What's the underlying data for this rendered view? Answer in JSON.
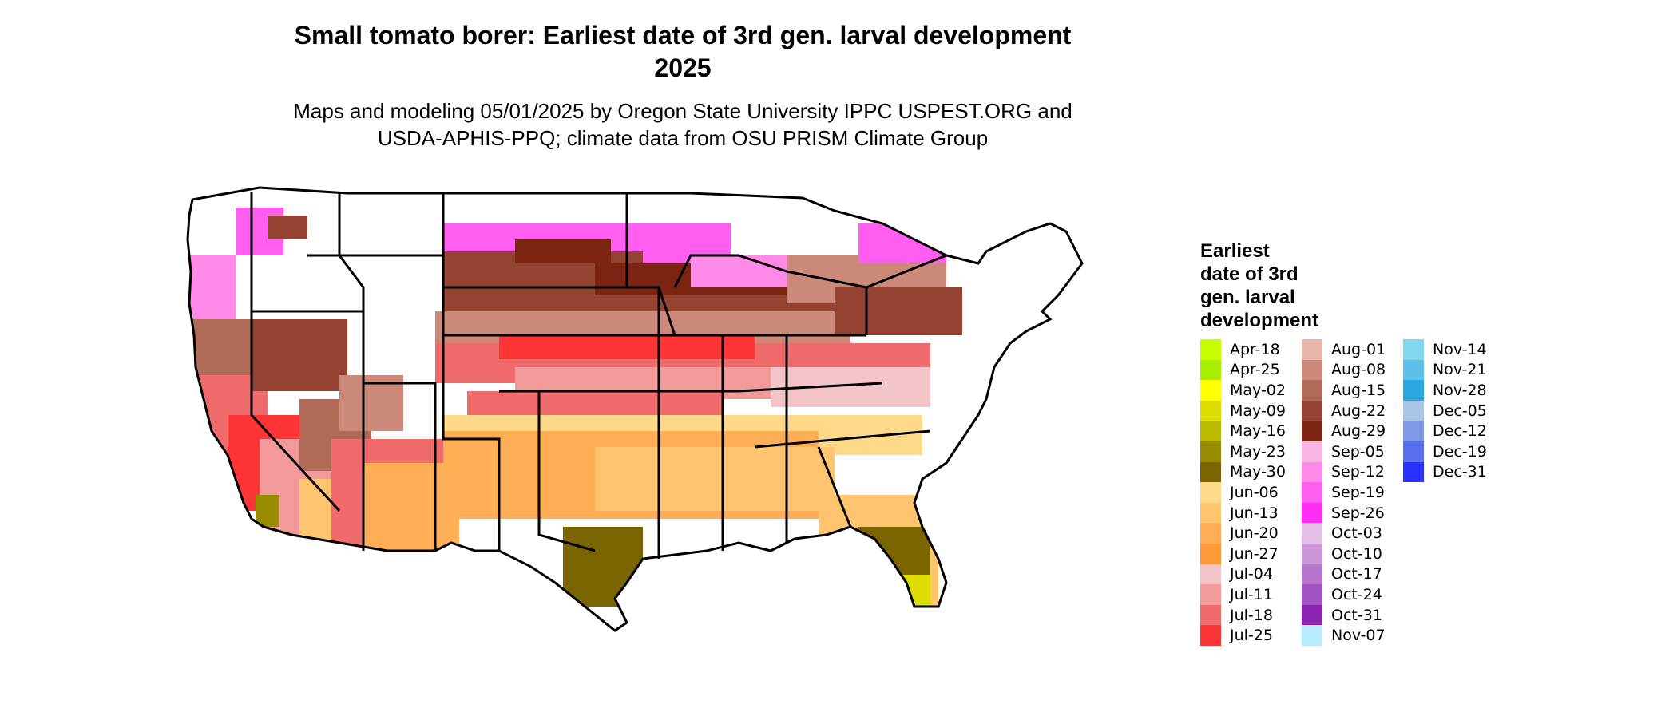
{
  "title_line1": "Small tomato borer: Earliest date of 3rd gen. larval development",
  "title_line2": "2025",
  "subtitle_line1": "Maps and modeling 05/01/2025 by Oregon State University IPPC USPEST.ORG and",
  "subtitle_line2": "USDA-APHIS-PPQ; climate data from OSU PRISM Climate Group",
  "legend": {
    "title_line1": "Earliest",
    "title_line2": "date of 3rd",
    "title_line3": "gen. larval",
    "title_line4": "development",
    "items": [
      {
        "label": "Apr-18",
        "color": "#c8ff00"
      },
      {
        "label": "Apr-25",
        "color": "#a8ee00"
      },
      {
        "label": "May-02",
        "color": "#ffff00"
      },
      {
        "label": "May-09",
        "color": "#dddd00"
      },
      {
        "label": "May-16",
        "color": "#bbbb00"
      },
      {
        "label": "May-23",
        "color": "#9a8c00"
      },
      {
        "label": "May-30",
        "color": "#7a6500"
      },
      {
        "label": "Jun-06",
        "color": "#ffd98a"
      },
      {
        "label": "Jun-13",
        "color": "#ffc470"
      },
      {
        "label": "Jun-20",
        "color": "#ffae55"
      },
      {
        "label": "Jun-27",
        "color": "#ff9a38"
      },
      {
        "label": "Jul-04",
        "color": "#f4c5c8"
      },
      {
        "label": "Jul-11",
        "color": "#f29a9a"
      },
      {
        "label": "Jul-18",
        "color": "#f06b6b"
      },
      {
        "label": "Jul-25",
        "color": "#ff3535"
      },
      {
        "label": "Aug-01",
        "color": "#e8b6a8"
      },
      {
        "label": "Aug-08",
        "color": "#cc8878"
      },
      {
        "label": "Aug-15",
        "color": "#b06a58"
      },
      {
        "label": "Aug-22",
        "color": "#944232"
      },
      {
        "label": "Aug-29",
        "color": "#7c2412"
      },
      {
        "label": "Sep-05",
        "color": "#f8b4e4"
      },
      {
        "label": "Sep-12",
        "color": "#ff8ae8"
      },
      {
        "label": "Sep-19",
        "color": "#ff5ef0"
      },
      {
        "label": "Sep-26",
        "color": "#ff2cf6"
      },
      {
        "label": "Oct-03",
        "color": "#e2bde6"
      },
      {
        "label": "Oct-10",
        "color": "#cc95d6"
      },
      {
        "label": "Oct-17",
        "color": "#b775cc"
      },
      {
        "label": "Oct-24",
        "color": "#a052c0"
      },
      {
        "label": "Oct-31",
        "color": "#8a24b0"
      },
      {
        "label": "Nov-07",
        "color": "#b8ecff"
      },
      {
        "label": "Nov-14",
        "color": "#82d6ee"
      },
      {
        "label": "Nov-21",
        "color": "#5cc0e8"
      },
      {
        "label": "Nov-28",
        "color": "#2aa8e0"
      },
      {
        "label": "Dec-05",
        "color": "#a8c4e6"
      },
      {
        "label": "Dec-12",
        "color": "#8098e8"
      },
      {
        "label": "Dec-19",
        "color": "#5870f0"
      },
      {
        "label": "Dec-31",
        "color": "#2a30ff"
      }
    ]
  }
}
